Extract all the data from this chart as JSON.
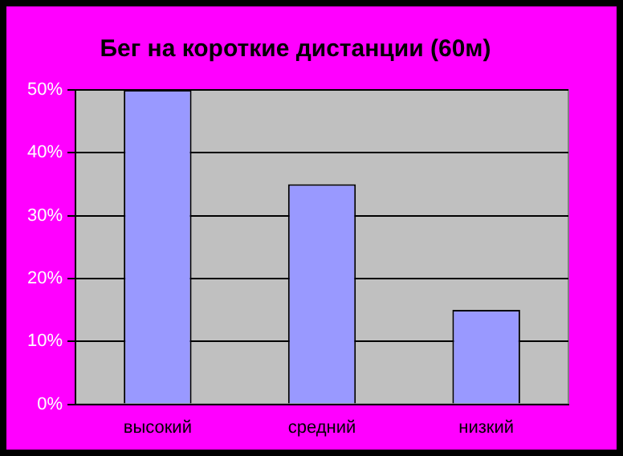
{
  "chart_data": {
    "type": "bar",
    "title": "Бег на короткие дистанции (60м)",
    "categories": [
      "высокий",
      "средний",
      "низкий"
    ],
    "values": [
      50,
      35,
      15
    ],
    "color": "#9999ff",
    "ylim": [
      0,
      50
    ],
    "yticks": [
      {
        "value": 0,
        "label": "0%"
      },
      {
        "value": 10,
        "label": "10%"
      },
      {
        "value": 20,
        "label": "20%"
      },
      {
        "value": 30,
        "label": "30%"
      },
      {
        "value": 40,
        "label": "40%"
      },
      {
        "value": 50,
        "label": "50%"
      }
    ],
    "grid": "y",
    "legend": false
  }
}
